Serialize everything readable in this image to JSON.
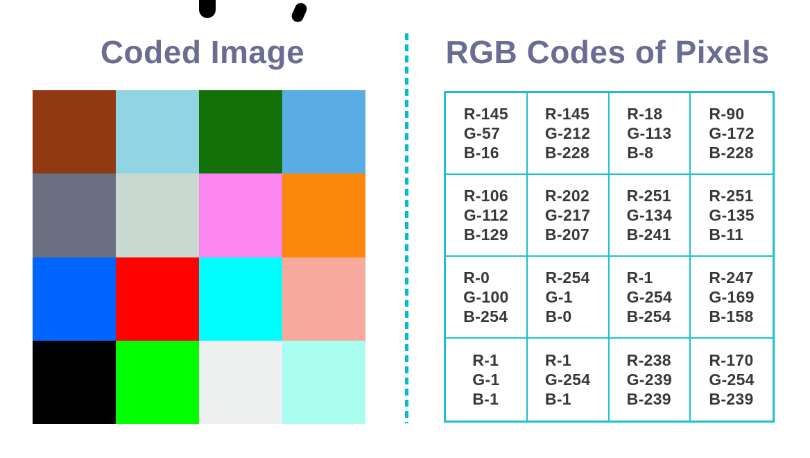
{
  "left_panel": {
    "title": "Coded Image"
  },
  "right_panel": {
    "title": "RGB Codes of Pixels"
  },
  "colors": {
    "title_text": "#696c93",
    "divider_teal": "#00bcd4",
    "table_border_teal": "#1dc0d2",
    "cell_text": "#363839",
    "background": "#ffffff"
  },
  "pixels": [
    {
      "row": 1,
      "col": 1,
      "r": 145,
      "g": 57,
      "b": 16,
      "color": "rgb(145,57,16)",
      "r_label": "R-145",
      "g_label": "G-57",
      "b_label": "B-16"
    },
    {
      "row": 1,
      "col": 2,
      "r": 145,
      "g": 212,
      "b": 228,
      "color": "rgb(145,212,228)",
      "r_label": "R-145",
      "g_label": "G-212",
      "b_label": "B-228"
    },
    {
      "row": 1,
      "col": 3,
      "r": 18,
      "g": 113,
      "b": 8,
      "color": "rgb(18,113,8)",
      "r_label": "R-18",
      "g_label": "G-113",
      "b_label": "B-8"
    },
    {
      "row": 1,
      "col": 4,
      "r": 90,
      "g": 172,
      "b": 228,
      "color": "rgb(90,172,228)",
      "r_label": "R-90",
      "g_label": "G-172",
      "b_label": "B-228"
    },
    {
      "row": 2,
      "col": 1,
      "r": 106,
      "g": 112,
      "b": 129,
      "color": "rgb(106,112,129)",
      "r_label": "R-106",
      "g_label": "G-112",
      "b_label": "B-129"
    },
    {
      "row": 2,
      "col": 2,
      "r": 202,
      "g": 217,
      "b": 207,
      "color": "rgb(202,217,207)",
      "r_label": "R-202",
      "g_label": "G-217",
      "b_label": "B-207"
    },
    {
      "row": 2,
      "col": 3,
      "r": 251,
      "g": 134,
      "b": 241,
      "color": "rgb(251,134,241)",
      "r_label": "R-251",
      "g_label": "G-134",
      "b_label": "B-241"
    },
    {
      "row": 2,
      "col": 4,
      "r": 251,
      "g": 135,
      "b": 11,
      "color": "rgb(251,135,11)",
      "r_label": "R-251",
      "g_label": "G-135",
      "b_label": "B-11"
    },
    {
      "row": 3,
      "col": 1,
      "r": 0,
      "g": 100,
      "b": 254,
      "color": "rgb(0,100,254)",
      "r_label": "R-0",
      "g_label": "G-100",
      "b_label": "B-254"
    },
    {
      "row": 3,
      "col": 2,
      "r": 254,
      "g": 1,
      "b": 0,
      "color": "rgb(254,1,0)",
      "r_label": "R-254",
      "g_label": "G-1",
      "b_label": "B-0"
    },
    {
      "row": 3,
      "col": 3,
      "r": 1,
      "g": 254,
      "b": 254,
      "color": "rgb(1,254,254)",
      "r_label": "R-1",
      "g_label": "G-254",
      "b_label": "B-254"
    },
    {
      "row": 3,
      "col": 4,
      "r": 247,
      "g": 169,
      "b": 158,
      "color": "rgb(247,169,158)",
      "r_label": "R-247",
      "g_label": "G-169",
      "b_label": "B-158"
    },
    {
      "row": 4,
      "col": 1,
      "r": 1,
      "g": 1,
      "b": 1,
      "color": "rgb(1,1,1)",
      "r_label": "R-1",
      "g_label": "G-1",
      "b_label": "B-1"
    },
    {
      "row": 4,
      "col": 2,
      "r": 1,
      "g": 254,
      "b": 1,
      "color": "rgb(1,254,1)",
      "r_label": "R-1",
      "g_label": "G-254",
      "b_label": "B-1"
    },
    {
      "row": 4,
      "col": 3,
      "r": 238,
      "g": 239,
      "b": 239,
      "color": "rgb(238,239,239)",
      "r_label": "R-238",
      "g_label": "G-239",
      "b_label": "B-239"
    },
    {
      "row": 4,
      "col": 4,
      "r": 170,
      "g": 254,
      "b": 239,
      "color": "rgb(170,254,239)",
      "r_label": "R-170",
      "g_label": "G-254",
      "b_label": "B-239"
    }
  ]
}
